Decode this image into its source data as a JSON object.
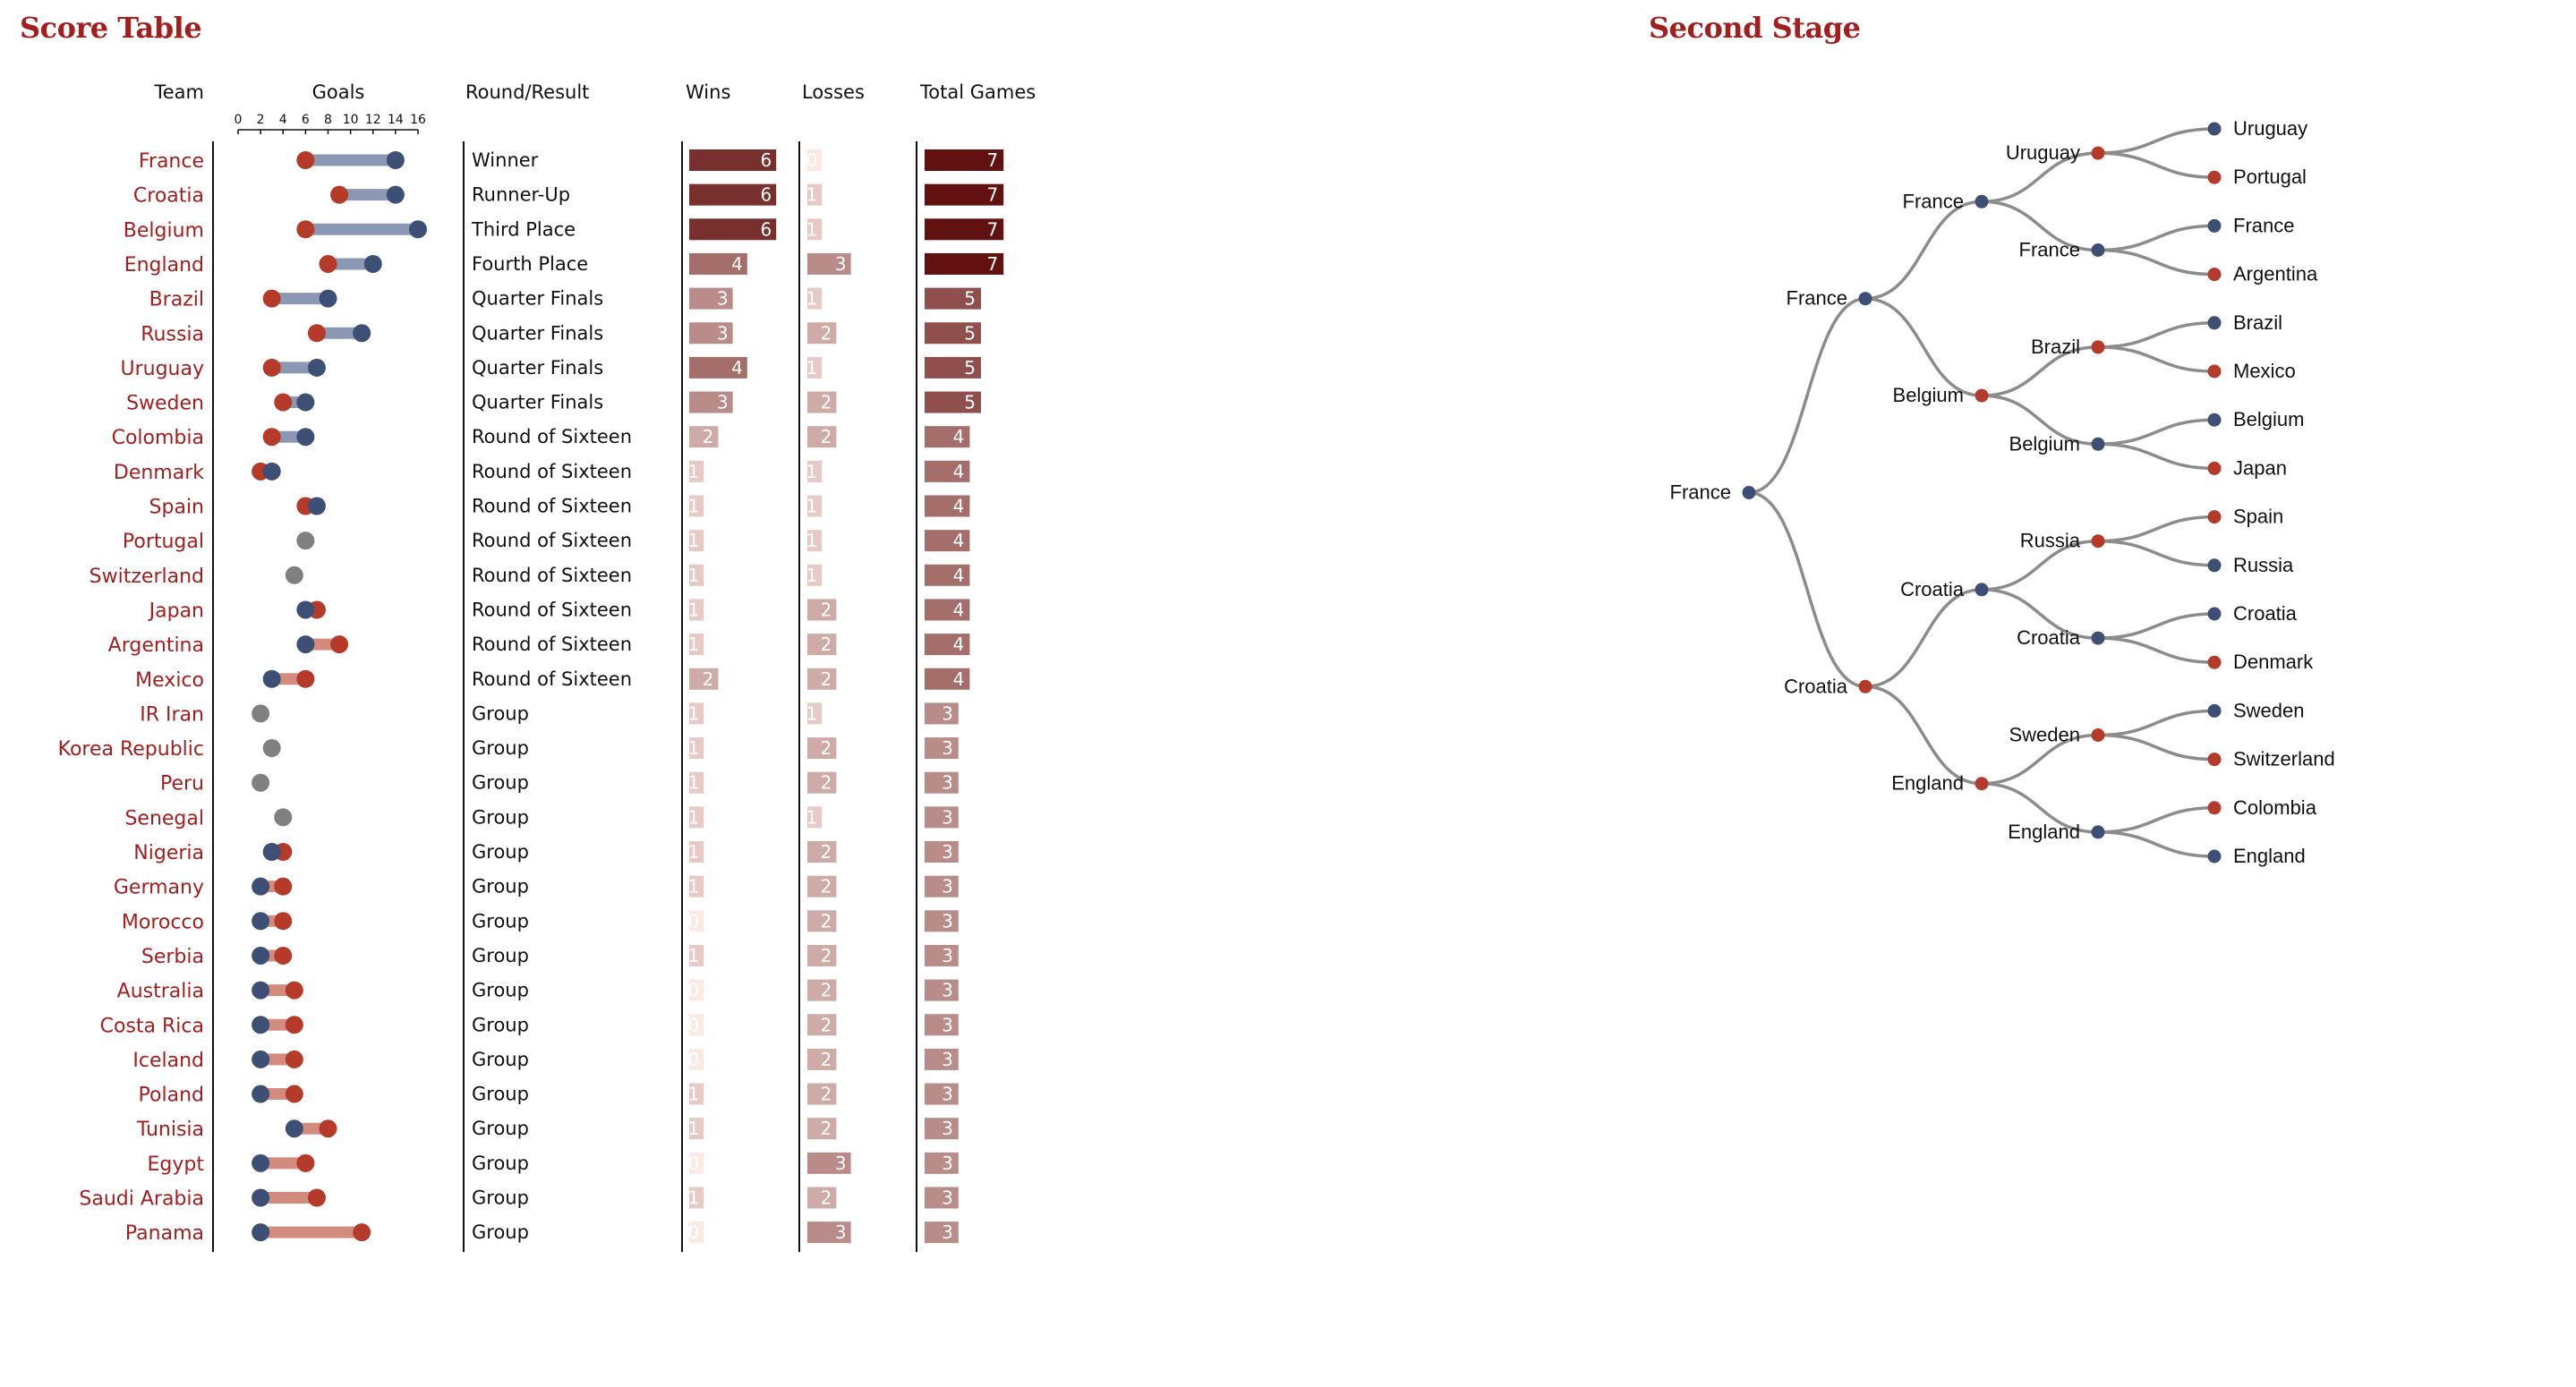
{
  "score_title": "Score Table",
  "bracket_title": "Second Stage",
  "headers": {
    "team": "Team",
    "goals": "Goals",
    "round": "Round/Result",
    "wins": "Wins",
    "losses": "Losses",
    "total": "Total Games"
  },
  "colors": {
    "accent": "#a31f1f",
    "scored_dot": "#3d4f75",
    "conceded_dot": "#b53a2a",
    "equal_dot": "#808080",
    "scored_more_bar": "#8a98b3",
    "conceded_more_bar": "#d38b7e",
    "link": "#8c8c8c"
  },
  "chart_data": [
    {
      "type": "table",
      "title": "Score Table",
      "goals_axis": {
        "ticks": [
          0,
          2,
          4,
          6,
          8,
          10,
          12,
          14,
          16
        ],
        "range": [
          0,
          16
        ]
      },
      "columns": [
        "Team",
        "Goals",
        "Round/Result",
        "Wins",
        "Losses",
        "Total Games"
      ],
      "teams": [
        {
          "name": "France",
          "scored": 14,
          "conceded": 6,
          "round": "Winner",
          "wins": 6,
          "losses": 0,
          "total": 7
        },
        {
          "name": "Croatia",
          "scored": 14,
          "conceded": 9,
          "round": "Runner-Up",
          "wins": 6,
          "losses": 1,
          "total": 7
        },
        {
          "name": "Belgium",
          "scored": 16,
          "conceded": 6,
          "round": "Third Place",
          "wins": 6,
          "losses": 1,
          "total": 7
        },
        {
          "name": "England",
          "scored": 12,
          "conceded": 8,
          "round": "Fourth Place",
          "wins": 4,
          "losses": 3,
          "total": 7
        },
        {
          "name": "Brazil",
          "scored": 8,
          "conceded": 3,
          "round": "Quarter Finals",
          "wins": 3,
          "losses": 1,
          "total": 5
        },
        {
          "name": "Russia",
          "scored": 11,
          "conceded": 7,
          "round": "Quarter Finals",
          "wins": 3,
          "losses": 2,
          "total": 5
        },
        {
          "name": "Uruguay",
          "scored": 7,
          "conceded": 3,
          "round": "Quarter Finals",
          "wins": 4,
          "losses": 1,
          "total": 5
        },
        {
          "name": "Sweden",
          "scored": 6,
          "conceded": 4,
          "round": "Quarter Finals",
          "wins": 3,
          "losses": 2,
          "total": 5
        },
        {
          "name": "Colombia",
          "scored": 6,
          "conceded": 3,
          "round": "Round of Sixteen",
          "wins": 2,
          "losses": 2,
          "total": 4
        },
        {
          "name": "Denmark",
          "scored": 3,
          "conceded": 2,
          "round": "Round of Sixteen",
          "wins": 1,
          "losses": 1,
          "total": 4
        },
        {
          "name": "Spain",
          "scored": 7,
          "conceded": 6,
          "round": "Round of Sixteen",
          "wins": 1,
          "losses": 1,
          "total": 4
        },
        {
          "name": "Portugal",
          "scored": 6,
          "conceded": 6,
          "round": "Round of Sixteen",
          "wins": 1,
          "losses": 1,
          "total": 4
        },
        {
          "name": "Switzerland",
          "scored": 5,
          "conceded": 5,
          "round": "Round of Sixteen",
          "wins": 1,
          "losses": 1,
          "total": 4
        },
        {
          "name": "Japan",
          "scored": 6,
          "conceded": 7,
          "round": "Round of Sixteen",
          "wins": 1,
          "losses": 2,
          "total": 4
        },
        {
          "name": "Argentina",
          "scored": 6,
          "conceded": 9,
          "round": "Round of Sixteen",
          "wins": 1,
          "losses": 2,
          "total": 4
        },
        {
          "name": "Mexico",
          "scored": 3,
          "conceded": 6,
          "round": "Round of Sixteen",
          "wins": 2,
          "losses": 2,
          "total": 4
        },
        {
          "name": "IR Iran",
          "scored": 2,
          "conceded": 2,
          "round": "Group",
          "wins": 1,
          "losses": 1,
          "total": 3
        },
        {
          "name": "Korea Republic",
          "scored": 3,
          "conceded": 3,
          "round": "Group",
          "wins": 1,
          "losses": 2,
          "total": 3
        },
        {
          "name": "Peru",
          "scored": 2,
          "conceded": 2,
          "round": "Group",
          "wins": 1,
          "losses": 2,
          "total": 3
        },
        {
          "name": "Senegal",
          "scored": 4,
          "conceded": 4,
          "round": "Group",
          "wins": 1,
          "losses": 1,
          "total": 3
        },
        {
          "name": "Nigeria",
          "scored": 3,
          "conceded": 4,
          "round": "Group",
          "wins": 1,
          "losses": 2,
          "total": 3
        },
        {
          "name": "Germany",
          "scored": 2,
          "conceded": 4,
          "round": "Group",
          "wins": 1,
          "losses": 2,
          "total": 3
        },
        {
          "name": "Morocco",
          "scored": 2,
          "conceded": 4,
          "round": "Group",
          "wins": 0,
          "losses": 2,
          "total": 3
        },
        {
          "name": "Serbia",
          "scored": 2,
          "conceded": 4,
          "round": "Group",
          "wins": 1,
          "losses": 2,
          "total": 3
        },
        {
          "name": "Australia",
          "scored": 2,
          "conceded": 5,
          "round": "Group",
          "wins": 0,
          "losses": 2,
          "total": 3
        },
        {
          "name": "Costa Rica",
          "scored": 2,
          "conceded": 5,
          "round": "Group",
          "wins": 0,
          "losses": 2,
          "total": 3
        },
        {
          "name": "Iceland",
          "scored": 2,
          "conceded": 5,
          "round": "Group",
          "wins": 0,
          "losses": 2,
          "total": 3
        },
        {
          "name": "Poland",
          "scored": 2,
          "conceded": 5,
          "round": "Group",
          "wins": 1,
          "losses": 2,
          "total": 3
        },
        {
          "name": "Tunisia",
          "scored": 5,
          "conceded": 8,
          "round": "Group",
          "wins": 1,
          "losses": 2,
          "total": 3
        },
        {
          "name": "Egypt",
          "scored": 2,
          "conceded": 6,
          "round": "Group",
          "wins": 0,
          "losses": 3,
          "total": 3
        },
        {
          "name": "Saudi Arabia",
          "scored": 2,
          "conceded": 7,
          "round": "Group",
          "wins": 1,
          "losses": 2,
          "total": 3
        },
        {
          "name": "Panama",
          "scored": 2,
          "conceded": 11,
          "round": "Group",
          "wins": 0,
          "losses": 3,
          "total": 3
        }
      ]
    },
    {
      "type": "tree",
      "title": "Second Stage",
      "root": {
        "name": "France",
        "result": "win",
        "children": [
          {
            "name": "France",
            "result": "win",
            "children": [
              {
                "name": "France",
                "result": "win",
                "children": [
                  {
                    "name": "Uruguay",
                    "result": "loss",
                    "children": [
                      {
                        "name": "Uruguay",
                        "result": "win"
                      },
                      {
                        "name": "Portugal",
                        "result": "loss"
                      }
                    ]
                  },
                  {
                    "name": "France",
                    "result": "win",
                    "children": [
                      {
                        "name": "France",
                        "result": "win"
                      },
                      {
                        "name": "Argentina",
                        "result": "loss"
                      }
                    ]
                  }
                ]
              },
              {
                "name": "Belgium",
                "result": "loss",
                "children": [
                  {
                    "name": "Brazil",
                    "result": "loss",
                    "children": [
                      {
                        "name": "Brazil",
                        "result": "win"
                      },
                      {
                        "name": "Mexico",
                        "result": "loss"
                      }
                    ]
                  },
                  {
                    "name": "Belgium",
                    "result": "win",
                    "children": [
                      {
                        "name": "Belgium",
                        "result": "win"
                      },
                      {
                        "name": "Japan",
                        "result": "loss"
                      }
                    ]
                  }
                ]
              }
            ]
          },
          {
            "name": "Croatia",
            "result": "loss",
            "children": [
              {
                "name": "Croatia",
                "result": "win",
                "children": [
                  {
                    "name": "Russia",
                    "result": "loss",
                    "children": [
                      {
                        "name": "Spain",
                        "result": "loss"
                      },
                      {
                        "name": "Russia",
                        "result": "win"
                      }
                    ]
                  },
                  {
                    "name": "Croatia",
                    "result": "win",
                    "children": [
                      {
                        "name": "Croatia",
                        "result": "win"
                      },
                      {
                        "name": "Denmark",
                        "result": "loss"
                      }
                    ]
                  }
                ]
              },
              {
                "name": "England",
                "result": "loss",
                "children": [
                  {
                    "name": "Sweden",
                    "result": "loss",
                    "children": [
                      {
                        "name": "Sweden",
                        "result": "win"
                      },
                      {
                        "name": "Switzerland",
                        "result": "loss"
                      }
                    ]
                  },
                  {
                    "name": "England",
                    "result": "win",
                    "children": [
                      {
                        "name": "Colombia",
                        "result": "loss"
                      },
                      {
                        "name": "England",
                        "result": "win"
                      }
                    ]
                  }
                ]
              }
            ]
          }
        ]
      }
    }
  ]
}
